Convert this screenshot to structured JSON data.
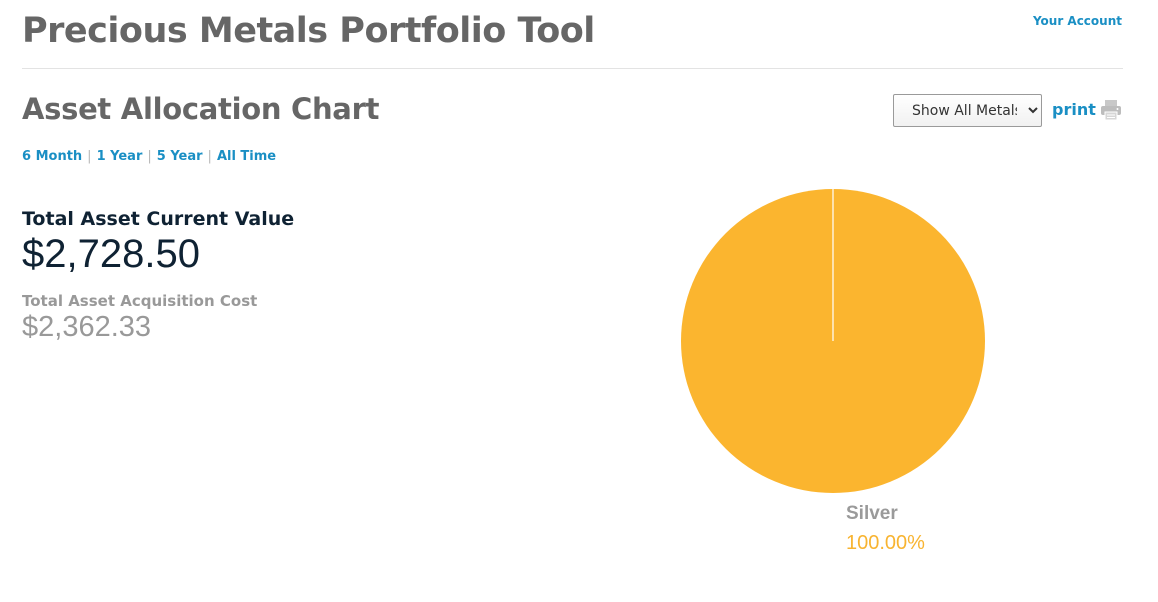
{
  "header": {
    "title": "Precious Metals Portfolio Tool",
    "account_link": "Your Account"
  },
  "section": {
    "title": "Asset Allocation Chart"
  },
  "controls": {
    "metal_filter": {
      "selected": "Show All Metals",
      "options": [
        "Show All Metals"
      ]
    },
    "print_label": "print",
    "print_icon": "printer-icon"
  },
  "time_ranges": [
    {
      "label": "6 Month"
    },
    {
      "label": "1 Year"
    },
    {
      "label": "5 Year"
    },
    {
      "label": "All Time"
    }
  ],
  "summary": {
    "current_value_label": "Total Asset Current Value",
    "current_value": "$2,728.50",
    "acquisition_cost_label": "Total Asset Acquisition Cost",
    "acquisition_cost": "$2,362.33"
  },
  "chart_data": {
    "type": "pie",
    "categories": [
      "Silver"
    ],
    "values": [
      100.0
    ],
    "value_labels": [
      "100.00%"
    ],
    "colors": [
      "#fbb52f"
    ],
    "label_color": "#9a9a9a",
    "percent_color": "#f8b431"
  },
  "colors": {
    "link": "#1a8fc4",
    "heading": "#666666",
    "value_dark": "#0f2233",
    "value_muted": "#999999"
  }
}
